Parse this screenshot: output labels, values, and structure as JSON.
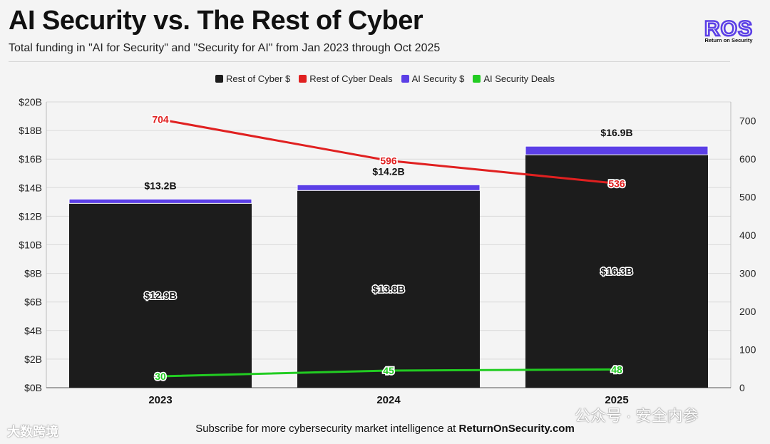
{
  "header": {
    "title": "AI Security vs. The Rest of Cyber",
    "subtitle": "Total funding in \"AI for Security\" and \"Security for AI\" from Jan 2023 through Oct 2025"
  },
  "logo": {
    "text": "ROS",
    "caption": "Return on Security"
  },
  "footer": {
    "prefix": "Subscribe for more cybersecurity market intelligence at ",
    "site": "ReturnOnSecurity.com"
  },
  "watermarks": {
    "left": "大数跨境",
    "right": "公众号 · 安全内参"
  },
  "colors": {
    "rest_bar": "#1c1c1c",
    "ai_bar": "#5b3fe6",
    "rest_deals": "#e02020",
    "ai_deals": "#22cc22"
  },
  "chart_data": {
    "type": "bar",
    "categories": [
      "2023",
      "2024",
      "2025"
    ],
    "series": [
      {
        "name": "Rest of Cyber $",
        "type": "bar",
        "axis": "left",
        "values": [
          12.9,
          13.8,
          16.3
        ],
        "labels": [
          "$12.9B",
          "$13.8B",
          "$16.3B"
        ]
      },
      {
        "name": "Rest of Cyber Deals",
        "type": "line",
        "axis": "right",
        "values": [
          704,
          596,
          536
        ],
        "labels": [
          "704",
          "596",
          "536"
        ]
      },
      {
        "name": "AI Security $",
        "type": "bar",
        "axis": "left",
        "values": [
          0.3,
          0.4,
          0.6
        ]
      },
      {
        "name": "AI Security Deals",
        "type": "line",
        "axis": "right",
        "values": [
          30,
          45,
          48
        ],
        "labels": [
          "30",
          "45",
          "48"
        ]
      }
    ],
    "totals": {
      "values": [
        13.2,
        14.2,
        16.9
      ],
      "labels": [
        "$13.2B",
        "$14.2B",
        "$16.9B"
      ]
    },
    "y_left": {
      "lim": [
        0,
        20
      ],
      "ticks": [
        "$0B",
        "$2B",
        "$4B",
        "$6B",
        "$8B",
        "$10B",
        "$12B",
        "$14B",
        "$16B",
        "$18B",
        "$20B"
      ]
    },
    "y_right": {
      "lim": [
        0,
        750
      ],
      "ticks": [
        "0",
        "100",
        "200",
        "300",
        "400",
        "500",
        "600",
        "700"
      ]
    },
    "grid": true,
    "legend_position": "top-center"
  }
}
